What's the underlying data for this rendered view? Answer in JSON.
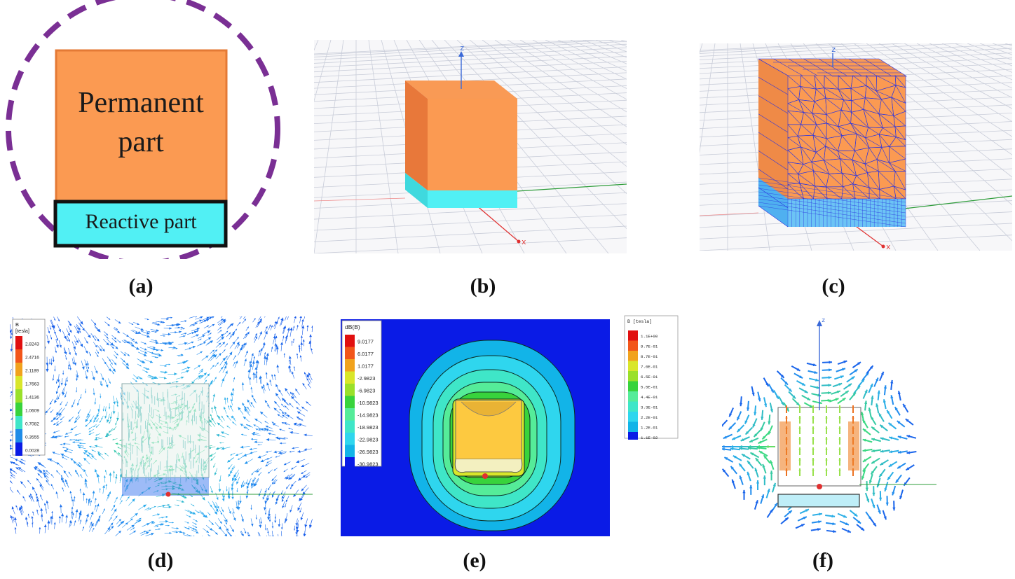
{
  "panel_a": {
    "top_label_line1": "Permanent",
    "top_label_line2": "part",
    "bottom_label": "Reactive part"
  },
  "panel_b": {
    "axis_z": "z",
    "axis_x": "x"
  },
  "panel_c": {
    "axis_z": "z",
    "axis_x": "x"
  },
  "panel_d": {
    "legend_title_line1": "B",
    "legend_title_line2": "[tesla]",
    "legend_values": [
      "2.8243",
      "2.4716",
      "2.1189",
      "1.7663",
      "1.4136",
      "1.0609",
      "0.7082",
      "0.3555",
      "0.0028"
    ]
  },
  "panel_e": {
    "legend_title": "dB(B)",
    "legend_values": [
      "9.0177",
      "6.0177",
      "1.0177",
      "-2.9823",
      "-6.9823",
      "-10.9823",
      "-14.9823",
      "-18.9823",
      "-22.9823",
      "-26.9823",
      "-30.9823"
    ]
  },
  "panel_f": {
    "legend_title": "B [tesla]",
    "legend_values": [
      "1.1E+00",
      "9.7E-01",
      "8.7E-01",
      "7.6E-01",
      "6.5E-01",
      "5.5E-01",
      "4.4E-01",
      "3.3E-01",
      "2.2E-01",
      "1.2E-01",
      "1.1E-02"
    ],
    "axis_z": "z"
  },
  "captions": {
    "a": "(a)",
    "b": "(b)",
    "c": "(c)",
    "d": "(d)",
    "e": "(e)",
    "f": "(f)"
  },
  "colors": {
    "permanent": "#fb9a52",
    "permanent_side": "#e8783a",
    "reactive": "#51f0f4",
    "dash_circle": "#7a2f94",
    "mesh_line": "#2a35e0",
    "background_blue": "#0a1be6"
  }
}
